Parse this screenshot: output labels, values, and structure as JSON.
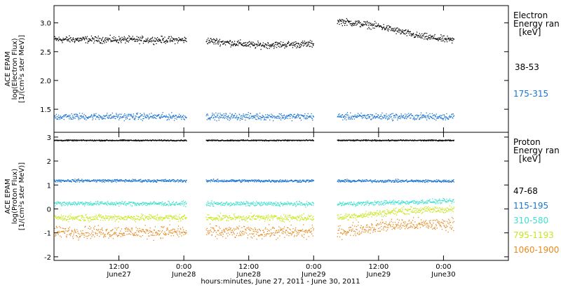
{
  "chart_data": [
    {
      "type": "scatter",
      "panel": "electron",
      "ylabel_lines": [
        "ACE EPAM",
        "log(Electron Flux)",
        "[1/(cm²s ster MeV)]"
      ],
      "ylim": [
        1.1,
        3.3
      ],
      "yticks": [
        1.5,
        2.0,
        2.5,
        3.0
      ],
      "ytick_labels": [
        "1.5",
        "2.0",
        "2.5",
        "3.0"
      ],
      "legend_title": [
        "Electron",
        "Energy ran",
        "[keV]"
      ],
      "series": [
        {
          "name": "38-53",
          "color": "#000000",
          "level": 2.72,
          "noise": 0.05,
          "segments": [
            [
              0.0,
              1.02
            ],
            [
              1.17,
              2.0
            ],
            [
              2.18,
              3.08
            ]
          ],
          "shape": [
            [
              0.0,
              2.72
            ],
            [
              1.02,
              2.71
            ],
            [
              1.17,
              2.7
            ],
            [
              1.55,
              2.62
            ],
            [
              2.0,
              2.64
            ],
            [
              2.18,
              3.04
            ],
            [
              2.5,
              2.95
            ],
            [
              2.8,
              2.78
            ],
            [
              3.08,
              2.7
            ]
          ]
        },
        {
          "name": "175-315",
          "color": "#1a74d1",
          "level": 1.38,
          "noise": 0.05,
          "segments": [
            [
              0.0,
              1.02
            ],
            [
              1.17,
              2.0
            ],
            [
              2.18,
              3.08
            ]
          ],
          "shape": [
            [
              0.0,
              1.38
            ],
            [
              3.08,
              1.38
            ]
          ]
        }
      ]
    },
    {
      "type": "scatter",
      "panel": "proton",
      "ylabel_lines": [
        "ACE EPAM",
        "log(Proton Flux)",
        "[1/(cm²s ster MeV)]"
      ],
      "ylim": [
        -2.15,
        3.2
      ],
      "yticks": [
        -2,
        -1,
        0,
        1,
        2,
        3
      ],
      "ytick_labels": [
        "-2",
        "-1",
        "0",
        "1",
        "2",
        "3"
      ],
      "legend_title": [
        "Proton",
        "Energy ran",
        "[keV]"
      ],
      "series": [
        {
          "name": "47-68",
          "color": "#000000",
          "level": 2.88,
          "noise": 0.02,
          "segments": [
            [
              0.0,
              1.02
            ],
            [
              1.17,
              2.0
            ],
            [
              2.18,
              3.08
            ]
          ],
          "shape": [
            [
              0.0,
              2.88
            ],
            [
              3.08,
              2.88
            ]
          ]
        },
        {
          "name": "115-195",
          "color": "#1a74d1",
          "level": 1.2,
          "noise": 0.05,
          "segments": [
            [
              0.0,
              1.02
            ],
            [
              1.17,
              2.0
            ],
            [
              2.18,
              3.08
            ]
          ],
          "shape": [
            [
              0.0,
              1.2
            ],
            [
              3.08,
              1.18
            ]
          ]
        },
        {
          "name": "310-580",
          "color": "#3fe0d0",
          "level": 0.25,
          "noise": 0.08,
          "segments": [
            [
              0.0,
              1.02
            ],
            [
              1.17,
              2.0
            ],
            [
              2.18,
              3.08
            ]
          ],
          "shape": [
            [
              0.0,
              0.25
            ],
            [
              2.18,
              0.22
            ],
            [
              3.08,
              0.35
            ]
          ]
        },
        {
          "name": "795-1193",
          "color": "#c8e61e",
          "level": -0.35,
          "noise": 0.12,
          "segments": [
            [
              0.0,
              1.02
            ],
            [
              1.17,
              2.0
            ],
            [
              2.18,
              3.08
            ]
          ],
          "shape": [
            [
              0.0,
              -0.35
            ],
            [
              2.18,
              -0.35
            ],
            [
              2.7,
              -0.05
            ],
            [
              3.08,
              0.0
            ]
          ]
        },
        {
          "name": "1060-1900",
          "color": "#e68a1e",
          "level": -0.9,
          "noise": 0.22,
          "segments": [
            [
              0.0,
              1.02
            ],
            [
              1.17,
              2.0
            ],
            [
              2.18,
              3.08
            ]
          ],
          "shape": [
            [
              0.0,
              -0.95
            ],
            [
              2.18,
              -0.95
            ],
            [
              2.6,
              -0.65
            ],
            [
              3.08,
              -0.62
            ]
          ]
        }
      ]
    }
  ],
  "x_axis": {
    "range_days": [
      0,
      3.5
    ],
    "ticks": [
      {
        "day": 0.5,
        "top": "12:00",
        "bottom": "June27"
      },
      {
        "day": 1.0,
        "top": "0:00",
        "bottom": "June28"
      },
      {
        "day": 1.5,
        "top": "12:00",
        "bottom": "June28"
      },
      {
        "day": 2.0,
        "top": "0:00",
        "bottom": "June29"
      },
      {
        "day": 2.5,
        "top": "12:00",
        "bottom": "June29"
      },
      {
        "day": 3.0,
        "top": "0:00",
        "bottom": "June30"
      }
    ],
    "label": "hours:minutes, June 27, 2011 - June 30, 2011"
  }
}
